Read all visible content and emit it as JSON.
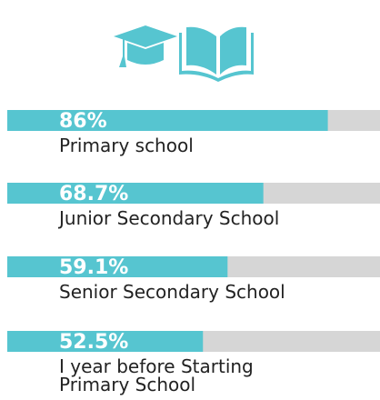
{
  "chart_data": {
    "type": "bar",
    "orientation": "horizontal",
    "categories": [
      "Primary school",
      "Junior Secondary School",
      "Senior Secondary School",
      "I year before Starting\nPrimary School"
    ],
    "values": [
      86,
      68.7,
      59.1,
      52.5
    ],
    "value_labels": [
      "86%",
      "68.7%",
      "59.1%",
      "52.5%"
    ],
    "color": "#56c5d0",
    "track_color": "#d6d6d6",
    "xlim": [
      0,
      100
    ]
  }
}
